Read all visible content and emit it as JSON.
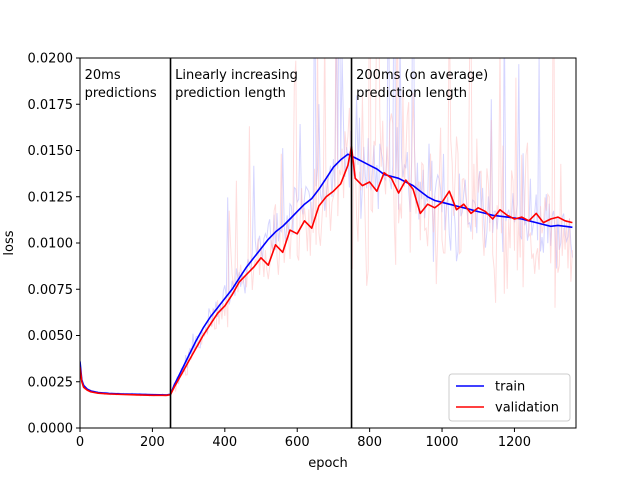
{
  "chart_data": {
    "type": "line",
    "title": "",
    "xlabel": "epoch",
    "ylabel": "loss",
    "xlim": [
      0,
      1370
    ],
    "ylim": [
      0,
      0.02
    ],
    "x_ticks": [
      0,
      200,
      400,
      600,
      800,
      1000,
      1200
    ],
    "x_tick_labels": [
      "0",
      "200",
      "400",
      "600",
      "800",
      "1000",
      "1200"
    ],
    "y_ticks": [
      0,
      0.0025,
      0.005,
      0.0075,
      0.01,
      0.0125,
      0.015,
      0.0175,
      0.02
    ],
    "y_tick_labels": [
      "0.0000",
      "0.0025",
      "0.0050",
      "0.0075",
      "0.0100",
      "0.0125",
      "0.0150",
      "0.0175",
      "0.0200"
    ],
    "grid": false,
    "legend_position": "lower-right",
    "vlines": [
      250,
      750
    ],
    "annotations": [
      {
        "x": 10,
        "lines": [
          "20ms",
          "predictions"
        ]
      },
      {
        "x": 260,
        "lines": [
          "Linearly increasing",
          "prediction length"
        ]
      },
      {
        "x": 760,
        "lines": [
          "200ms (on average)",
          "prediction length"
        ]
      }
    ],
    "series": [
      {
        "name": "train",
        "color": "#0000ff",
        "x": [
          0,
          5,
          10,
          20,
          30,
          50,
          80,
          120,
          160,
          200,
          240,
          250,
          260,
          280,
          300,
          320,
          340,
          360,
          380,
          400,
          420,
          440,
          460,
          480,
          500,
          520,
          540,
          560,
          580,
          600,
          620,
          640,
          660,
          680,
          700,
          720,
          740,
          750,
          760,
          780,
          800,
          820,
          840,
          860,
          880,
          900,
          920,
          940,
          960,
          980,
          1000,
          1020,
          1040,
          1060,
          1080,
          1100,
          1120,
          1140,
          1160,
          1180,
          1200,
          1220,
          1240,
          1260,
          1280,
          1300,
          1320,
          1340,
          1360
        ],
        "values": [
          0.0036,
          0.0026,
          0.0023,
          0.0021,
          0.002,
          0.00192,
          0.00187,
          0.00184,
          0.00182,
          0.0018,
          0.00179,
          0.00182,
          0.0023,
          0.0031,
          0.0039,
          0.0047,
          0.0054,
          0.006,
          0.0065,
          0.007,
          0.0075,
          0.0081,
          0.0087,
          0.0092,
          0.0097,
          0.0102,
          0.0106,
          0.0109,
          0.0113,
          0.0117,
          0.0121,
          0.0124,
          0.0129,
          0.0135,
          0.0141,
          0.0145,
          0.0148,
          0.0147,
          0.0146,
          0.0144,
          0.0142,
          0.014,
          0.0137,
          0.0136,
          0.0135,
          0.0133,
          0.0131,
          0.0128,
          0.0125,
          0.0123,
          0.0122,
          0.0121,
          0.012,
          0.0119,
          0.0118,
          0.0117,
          0.0116,
          0.0115,
          0.01145,
          0.0114,
          0.01135,
          0.0113,
          0.0112,
          0.0111,
          0.011,
          0.0109,
          0.01095,
          0.0109,
          0.01085
        ]
      },
      {
        "name": "validation",
        "color": "#ff0000",
        "x": [
          0,
          5,
          10,
          20,
          30,
          50,
          80,
          120,
          160,
          200,
          240,
          250,
          260,
          280,
          300,
          320,
          340,
          360,
          380,
          400,
          420,
          440,
          460,
          480,
          500,
          520,
          540,
          560,
          580,
          600,
          620,
          640,
          660,
          680,
          700,
          720,
          740,
          750,
          760,
          780,
          800,
          820,
          840,
          860,
          880,
          900,
          920,
          940,
          960,
          980,
          1000,
          1020,
          1040,
          1060,
          1080,
          1100,
          1120,
          1140,
          1160,
          1180,
          1200,
          1220,
          1240,
          1260,
          1280,
          1300,
          1320,
          1340,
          1360
        ],
        "values": [
          0.0033,
          0.0025,
          0.0022,
          0.00205,
          0.00195,
          0.00188,
          0.00184,
          0.00181,
          0.00179,
          0.00177,
          0.00177,
          0.0018,
          0.0022,
          0.0029,
          0.0036,
          0.0043,
          0.005,
          0.0056,
          0.0062,
          0.0066,
          0.0072,
          0.0079,
          0.0083,
          0.0087,
          0.0092,
          0.0088,
          0.0099,
          0.0095,
          0.0107,
          0.0105,
          0.0112,
          0.0108,
          0.012,
          0.0125,
          0.0128,
          0.0132,
          0.0142,
          0.0152,
          0.0135,
          0.0131,
          0.0133,
          0.0128,
          0.0138,
          0.0135,
          0.0127,
          0.0134,
          0.0129,
          0.0116,
          0.0121,
          0.0119,
          0.0122,
          0.0128,
          0.0118,
          0.0121,
          0.0116,
          0.0119,
          0.0117,
          0.0113,
          0.0118,
          0.0115,
          0.0113,
          0.0114,
          0.0112,
          0.0116,
          0.0111,
          0.0113,
          0.0114,
          0.0112,
          0.0111
        ]
      }
    ]
  }
}
